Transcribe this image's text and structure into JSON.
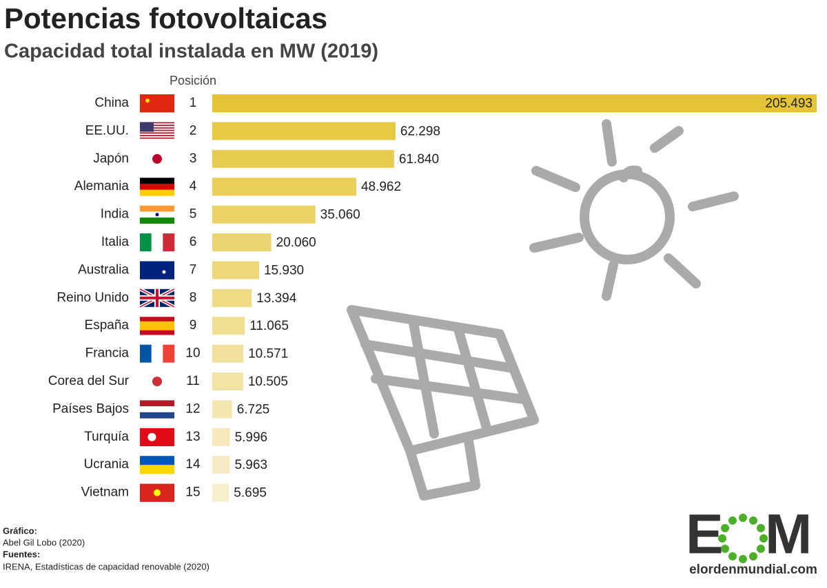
{
  "chart_data": {
    "type": "bar",
    "orientation": "horizontal",
    "title": "Potencias fotovoltaicas",
    "subtitle": "Capacidad total instalada en MW (2019)",
    "position_header": "Posición",
    "categories": [
      "China",
      "EE.UU.",
      "Japón",
      "Alemania",
      "India",
      "Italia",
      "Australia",
      "Reino Unido",
      "España",
      "Francia",
      "Corea del Sur",
      "Países Bajos",
      "Turquía",
      "Ucrania",
      "Vietnam"
    ],
    "positions": [
      1,
      2,
      3,
      4,
      5,
      6,
      7,
      8,
      9,
      10,
      11,
      12,
      13,
      14,
      15
    ],
    "values": [
      205493,
      62298,
      61840,
      48962,
      35060,
      20060,
      15930,
      13394,
      11065,
      10571,
      10505,
      6725,
      5996,
      5963,
      5695
    ],
    "value_labels": [
      "205.493",
      "62.298",
      "61.840",
      "48.962",
      "35.060",
      "20.060",
      "15.930",
      "13.394",
      "11.065",
      "10.571",
      "10.505",
      "6.725",
      "5.996",
      "5.963",
      "5.695"
    ],
    "colors": [
      "#e5c537",
      "#e7c944",
      "#e8cc4f",
      "#e9cf5a",
      "#ebd265",
      "#ecd570",
      "#eed87b",
      "#efdb86",
      "#f0de91",
      "#f2e19c",
      "#f3e4a6",
      "#f4e6b0",
      "#f5e9ba",
      "#f6ecc3",
      "#f7eecb"
    ],
    "credits": {
      "graphic_label": "Gráfico:",
      "graphic": "Abel Gil Lobo (2020)",
      "sources_label": "Fuentes:",
      "sources": "IRENA, Estadísticas de capacidad renovable (2020)"
    },
    "logo": {
      "left": "E",
      "right": "M",
      "url": "elordenmundial.com"
    }
  }
}
